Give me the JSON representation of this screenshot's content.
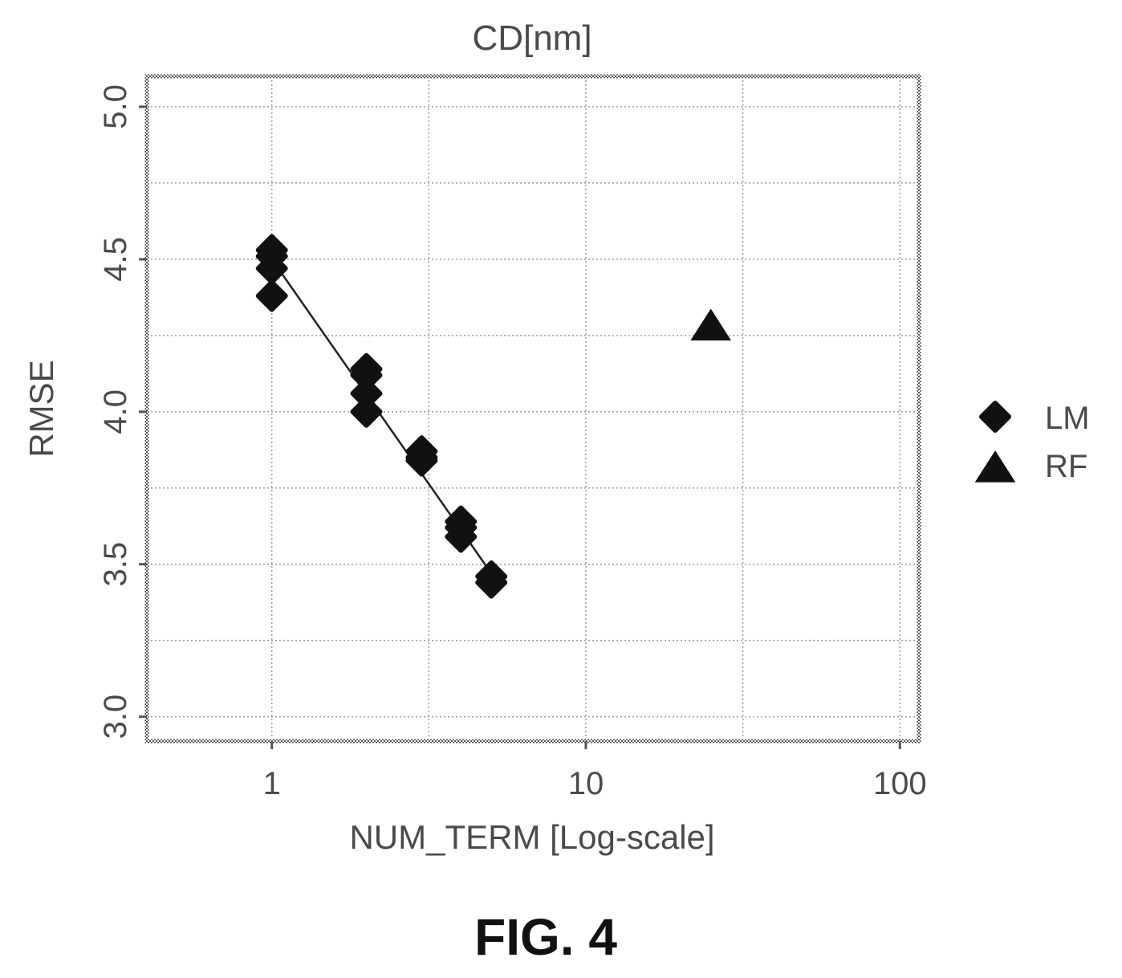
{
  "caption": "FIG. 4",
  "chart_data": {
    "type": "scatter",
    "title": "CD[nm]",
    "xlabel": "NUM_TERM [Log-scale]",
    "ylabel": "RMSE",
    "x_scale": "log",
    "xlim": [
      0.4,
      115
    ],
    "ylim": [
      2.92,
      5.1
    ],
    "x_ticks": [
      1,
      10,
      100
    ],
    "x_tick_labels": [
      "1",
      "10",
      "100"
    ],
    "y_ticks": [
      3.0,
      3.5,
      4.0,
      4.5,
      5.0
    ],
    "y_tick_labels": [
      "3.0",
      "3.5",
      "4.0",
      "4.5",
      "5.0"
    ],
    "grid": true,
    "legend": {
      "position": "right"
    },
    "series": [
      {
        "name": "LM",
        "marker": "diamond",
        "color": "#111111",
        "points": [
          {
            "x": 1,
            "y": 4.53
          },
          {
            "x": 1,
            "y": 4.51
          },
          {
            "x": 1,
            "y": 4.47
          },
          {
            "x": 1,
            "y": 4.38
          },
          {
            "x": 2,
            "y": 4.14
          },
          {
            "x": 2,
            "y": 4.12
          },
          {
            "x": 2,
            "y": 4.06
          },
          {
            "x": 2,
            "y": 4.0
          },
          {
            "x": 3,
            "y": 3.87
          },
          {
            "x": 3,
            "y": 3.85
          },
          {
            "x": 3,
            "y": 3.84
          },
          {
            "x": 4,
            "y": 3.64
          },
          {
            "x": 4,
            "y": 3.62
          },
          {
            "x": 4,
            "y": 3.59
          },
          {
            "x": 5,
            "y": 3.46
          },
          {
            "x": 5,
            "y": 3.44
          }
        ]
      },
      {
        "name": "RF",
        "marker": "triangle",
        "color": "#111111",
        "points": [
          {
            "x": 25,
            "y": 4.28
          }
        ]
      }
    ],
    "fit_line": {
      "series": "LM",
      "from": {
        "x": 1,
        "y": 4.5
      },
      "to": {
        "x": 5,
        "y": 3.47
      }
    }
  }
}
